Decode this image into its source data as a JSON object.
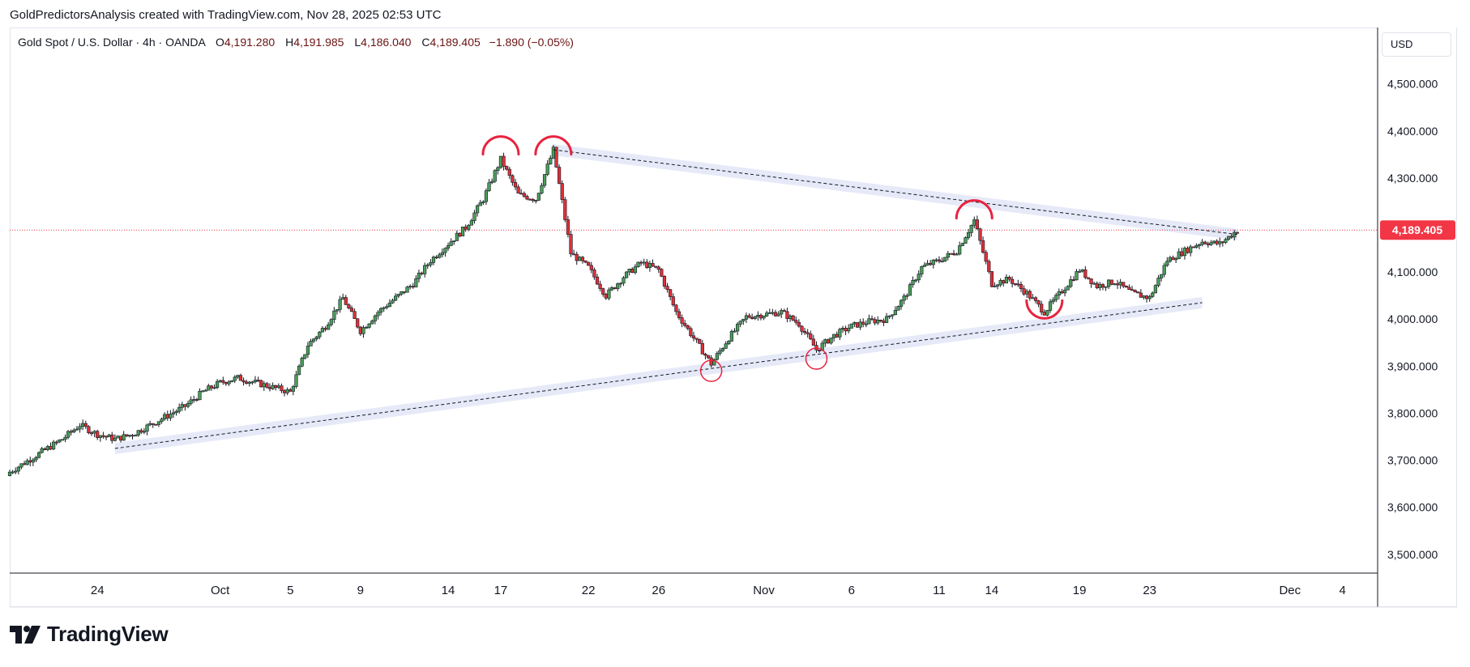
{
  "credit": "GoldPredictorsAnalysis created with TradingView.com, Nov 28, 2025 02:53 UTC",
  "legend": {
    "symbol": "Gold Spot / U.S. Dollar · 4h · OANDA",
    "open_key": "O",
    "open": "4,191.280",
    "high_key": "H",
    "high": "4,191.985",
    "low_key": "L",
    "low": "4,186.040",
    "close_key": "C",
    "close": "4,189.405",
    "change": "−1.890 (−0.05%)"
  },
  "currency": "USD",
  "brand": "TradingView",
  "colors": {
    "up": "#4a9e58",
    "down": "#e0303a",
    "annotation": "#e8233f",
    "channel": "#e6eaf8",
    "last_price": "#f23645",
    "axis_text": "#131722"
  },
  "chart_data": {
    "type": "candlestick",
    "instrument": "Gold Spot / U.S. Dollar",
    "timeframe": "4h",
    "ylim": [
      3460,
      4620
    ],
    "y_ticks": [
      3500,
      3600,
      3700,
      3800,
      3900,
      4000,
      4100,
      4200,
      4300,
      4400,
      4500
    ],
    "y_tick_labels": [
      "3,500.000",
      "3,600.000",
      "3,700.000",
      "3,800.000",
      "3,900.000",
      "4,000.000",
      "4,100.000",
      "4,200.000",
      "4,300.000",
      "4,400.000",
      "4,500.000"
    ],
    "x_range": [
      "2025-09-19",
      "2025-12-06"
    ],
    "x_ticks": [
      {
        "date": "2025-09-24",
        "label": "24"
      },
      {
        "date": "2025-10-01",
        "label": "Oct"
      },
      {
        "date": "2025-10-05",
        "label": "5"
      },
      {
        "date": "2025-10-09",
        "label": "9"
      },
      {
        "date": "2025-10-14",
        "label": "14"
      },
      {
        "date": "2025-10-17",
        "label": "17"
      },
      {
        "date": "2025-10-22",
        "label": "22"
      },
      {
        "date": "2025-10-26",
        "label": "26"
      },
      {
        "date": "2025-11-01",
        "label": "Nov"
      },
      {
        "date": "2025-11-06",
        "label": "6"
      },
      {
        "date": "2025-11-11",
        "label": "11"
      },
      {
        "date": "2025-11-14",
        "label": "14"
      },
      {
        "date": "2025-11-19",
        "label": "19"
      },
      {
        "date": "2025-11-23",
        "label": "23"
      },
      {
        "date": "2025-12-01",
        "label": "Dec"
      },
      {
        "date": "2025-12-04",
        "label": "4"
      }
    ],
    "last_price": 4189.405,
    "last_price_label": "4,189.405",
    "close_path": [
      [
        "2025-09-19",
        3675
      ],
      [
        "2025-09-22",
        3745
      ],
      [
        "2025-09-23",
        3775
      ],
      [
        "2025-09-24",
        3755
      ],
      [
        "2025-09-25",
        3745
      ],
      [
        "2025-09-26",
        3755
      ],
      [
        "2025-09-29",
        3815
      ],
      [
        "2025-09-30",
        3845
      ],
      [
        "2025-10-01",
        3865
      ],
      [
        "2025-10-02",
        3875
      ],
      [
        "2025-10-03",
        3865
      ],
      [
        "2025-10-05",
        3845
      ],
      [
        "2025-10-06",
        3945
      ],
      [
        "2025-10-07",
        3985
      ],
      [
        "2025-10-08",
        4045
      ],
      [
        "2025-10-09",
        3975
      ],
      [
        "2025-10-10",
        4015
      ],
      [
        "2025-10-12",
        4075
      ],
      [
        "2025-10-13",
        4125
      ],
      [
        "2025-10-14",
        4160
      ],
      [
        "2025-10-15",
        4195
      ],
      [
        "2025-10-16",
        4255
      ],
      [
        "2025-10-17",
        4340
      ],
      [
        "2025-10-18",
        4265
      ],
      [
        "2025-10-19",
        4255
      ],
      [
        "2025-10-20",
        4360
      ],
      [
        "2025-10-21",
        4140
      ],
      [
        "2025-10-22",
        4110
      ],
      [
        "2025-10-23",
        4050
      ],
      [
        "2025-10-24",
        4090
      ],
      [
        "2025-10-25",
        4120
      ],
      [
        "2025-10-26",
        4105
      ],
      [
        "2025-10-27",
        4015
      ],
      [
        "2025-10-28",
        3960
      ],
      [
        "2025-10-29",
        3905
      ],
      [
        "2025-10-30",
        3960
      ],
      [
        "2025-10-31",
        4005
      ],
      [
        "2025-11-01",
        4010
      ],
      [
        "2025-11-02",
        4015
      ],
      [
        "2025-11-03",
        3990
      ],
      [
        "2025-11-04",
        3935
      ],
      [
        "2025-11-05",
        3965
      ],
      [
        "2025-11-06",
        3985
      ],
      [
        "2025-11-07",
        3995
      ],
      [
        "2025-11-08",
        4000
      ],
      [
        "2025-11-09",
        4045
      ],
      [
        "2025-11-10",
        4110
      ],
      [
        "2025-11-11",
        4125
      ],
      [
        "2025-11-12",
        4145
      ],
      [
        "2025-11-13",
        4210
      ],
      [
        "2025-11-14",
        4075
      ],
      [
        "2025-11-15",
        4085
      ],
      [
        "2025-11-16",
        4055
      ],
      [
        "2025-11-17",
        4015
      ],
      [
        "2025-11-18",
        4060
      ],
      [
        "2025-11-19",
        4105
      ],
      [
        "2025-11-20",
        4070
      ],
      [
        "2025-11-21",
        4080
      ],
      [
        "2025-11-22",
        4055
      ],
      [
        "2025-11-23",
        4045
      ],
      [
        "2025-11-24",
        4125
      ],
      [
        "2025-11-25",
        4145
      ],
      [
        "2025-11-26",
        4165
      ],
      [
        "2025-11-27",
        4160
      ],
      [
        "2025-11-28",
        4189
      ]
    ],
    "trendlines": [
      {
        "from": [
          "2025-10-20",
          4360
        ],
        "to": [
          "2025-11-28",
          4180
        ],
        "style": "dashed"
      },
      {
        "from": [
          "2025-09-25",
          3725
        ],
        "to": [
          "2025-11-26",
          4035
        ],
        "style": "dashed"
      }
    ],
    "channel_bands": [
      {
        "from": [
          "2025-10-20",
          4360
        ],
        "to": [
          "2025-11-28",
          4180
        ]
      },
      {
        "from": [
          "2025-09-25",
          3725
        ],
        "to": [
          "2025-11-26",
          4035
        ]
      }
    ],
    "arc_tops": [
      {
        "date": "2025-10-17",
        "price": 4378
      },
      {
        "date": "2025-10-20",
        "price": 4378
      },
      {
        "date": "2025-11-13",
        "price": 4242
      }
    ],
    "arc_bottoms": [
      {
        "date": "2025-11-17",
        "price": 4012
      }
    ],
    "circles": [
      {
        "date": "2025-10-29",
        "price": 3890
      },
      {
        "date": "2025-11-04",
        "price": 3916
      }
    ]
  }
}
